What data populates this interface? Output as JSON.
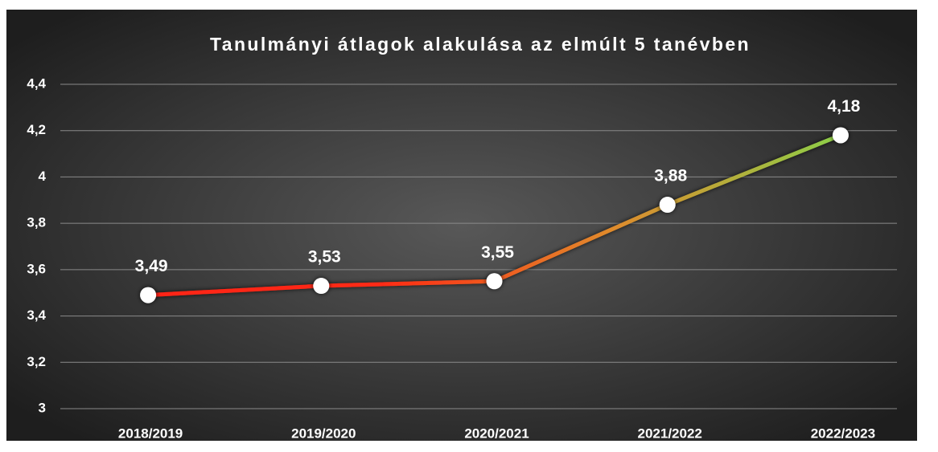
{
  "chart_data": {
    "type": "line",
    "title": "Tanulmányi átlagok alakulása az elmúlt 5 tanévben",
    "categories": [
      "2018/2019",
      "2019/2020",
      "2020/2021",
      "2021/2022",
      "2022/2023"
    ],
    "values": [
      3.49,
      3.53,
      3.55,
      3.88,
      4.18
    ],
    "value_labels": [
      "3,49",
      "3,53",
      "3,55",
      "3,88",
      "4,18"
    ],
    "ylim": [
      3,
      4.4
    ],
    "yticks": [
      3,
      {
        "value": 3.2,
        "label": "3,2"
      },
      {
        "value": 3.4,
        "label": "3,4"
      },
      {
        "value": 3.6,
        "label": "3,6"
      },
      {
        "value": 3.8,
        "label": "3,8"
      },
      4,
      {
        "value": 4.2,
        "label": "4,2"
      },
      {
        "value": 4.4,
        "label": "4,4"
      }
    ],
    "grid": true,
    "line_colors": [
      "#ff2414",
      "#ff2a14",
      "#e08a2c",
      "#8ccf48"
    ],
    "marker_color": "#ffffff"
  }
}
